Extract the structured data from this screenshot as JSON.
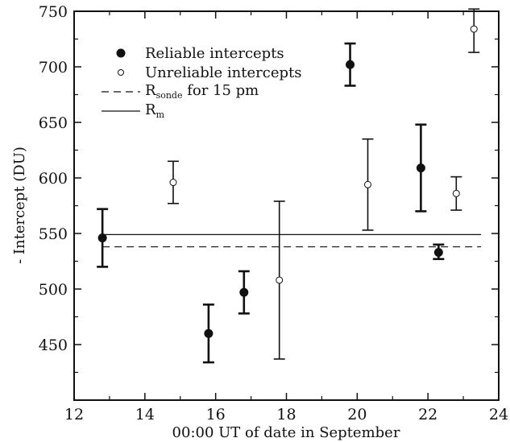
{
  "chart_data": {
    "type": "scatter",
    "xlabel": "00:00 UT of date in September",
    "ylabel": "- Intercept (DU)",
    "xlim": [
      12,
      24
    ],
    "ylim": [
      400,
      750
    ],
    "x_ticks": [
      "12",
      "14",
      "16",
      "18",
      "20",
      "22",
      "24"
    ],
    "y_ticks": [
      "450",
      "500",
      "550",
      "600",
      "650",
      "700",
      "750"
    ],
    "grid": false,
    "legend_position": "top-left",
    "legend": {
      "reliable": "Reliable intercepts",
      "unreliable": "Unreliable intercepts",
      "sonde_main": "R",
      "sonde_sub": "sonde",
      "sonde_rest": " for 15 pm",
      "rm_main": "R",
      "rm_sub": "m"
    },
    "series": [
      {
        "name": "Reliable intercepts",
        "marker": "filled-circle",
        "points": [
          {
            "x": 12.8,
            "y": 546,
            "low": 520,
            "high": 572
          },
          {
            "x": 15.8,
            "y": 460,
            "low": 434,
            "high": 486
          },
          {
            "x": 16.8,
            "y": 497,
            "low": 478,
            "high": 516
          },
          {
            "x": 19.8,
            "y": 702,
            "low": 683,
            "high": 721
          },
          {
            "x": 21.8,
            "y": 609,
            "low": 570,
            "high": 648
          },
          {
            "x": 22.3,
            "y": 533,
            "low": 527,
            "high": 540
          }
        ]
      },
      {
        "name": "Unreliable intercepts",
        "marker": "open-circle",
        "points": [
          {
            "x": 14.8,
            "y": 596,
            "low": 577,
            "high": 615
          },
          {
            "x": 17.8,
            "y": 508,
            "low": 437,
            "high": 579
          },
          {
            "x": 20.3,
            "y": 594,
            "low": 553,
            "high": 635
          },
          {
            "x": 22.8,
            "y": 586,
            "low": 571,
            "high": 601
          },
          {
            "x": 23.3,
            "y": 734,
            "low": 713,
            "high": 752
          }
        ]
      }
    ],
    "reference_lines": [
      {
        "name": "R_sonde for 15 pm",
        "style": "dashed",
        "y": 538,
        "x_range": [
          12.8,
          23.5
        ]
      },
      {
        "name": "R_m",
        "style": "solid",
        "y": 549,
        "x_range": [
          12.8,
          23.5
        ]
      }
    ]
  }
}
